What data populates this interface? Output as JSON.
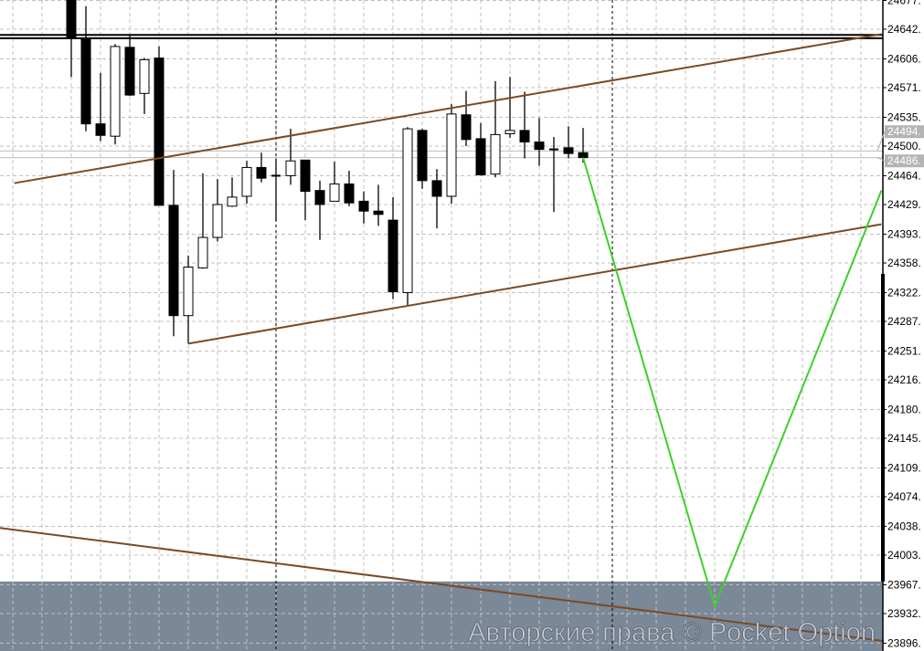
{
  "chart_data": {
    "type": "candlestick",
    "title": "",
    "xlabel": "",
    "ylabel": "",
    "ylim": [
      23880,
      24680
    ],
    "grid": true,
    "y_tick_labels": [
      "24677.",
      "24642.",
      "24606.",
      "24571.",
      "24535.",
      "24500.",
      "24464.",
      "24429.",
      "24393.",
      "24358.",
      "24322.",
      "24287.",
      "24251.",
      "24216.",
      "24180.",
      "24145.",
      "24109.",
      "24074.",
      "24038.",
      "24003.",
      "23967.",
      "23932.",
      "23896."
    ],
    "y_ticks": [
      24677,
      24642,
      24606,
      24571,
      24535,
      24500,
      24464,
      24429,
      24393,
      24358,
      24322,
      24287,
      24251,
      24216,
      24180,
      24145,
      24109,
      24074,
      24038,
      24003,
      23967,
      23932,
      23896
    ],
    "candles": [
      {
        "o": 24683,
        "h": 24700,
        "l": 24584,
        "c": 24631
      },
      {
        "o": 24630,
        "h": 24670,
        "l": 24518,
        "c": 24527
      },
      {
        "o": 24527,
        "h": 24589,
        "l": 24506,
        "c": 24513
      },
      {
        "o": 24512,
        "h": 24624,
        "l": 24502,
        "c": 24621
      },
      {
        "o": 24620,
        "h": 24636,
        "l": 24561,
        "c": 24562
      },
      {
        "o": 24564,
        "h": 24607,
        "l": 24539,
        "c": 24605
      },
      {
        "o": 24607,
        "h": 24621,
        "l": 24428,
        "c": 24428
      },
      {
        "o": 24428,
        "h": 24471,
        "l": 24269,
        "c": 24294
      },
      {
        "o": 24294,
        "h": 24367,
        "l": 24260,
        "c": 24353
      },
      {
        "o": 24352,
        "h": 24467,
        "l": 24351,
        "c": 24389
      },
      {
        "o": 24389,
        "h": 24460,
        "l": 24384,
        "c": 24429
      },
      {
        "o": 24427,
        "h": 24462,
        "l": 24426,
        "c": 24438
      },
      {
        "o": 24439,
        "h": 24482,
        "l": 24430,
        "c": 24474
      },
      {
        "o": 24474,
        "h": 24492,
        "l": 24456,
        "c": 24461
      },
      {
        "o": 24464,
        "h": 24485,
        "l": 24409,
        "c": 24464
      },
      {
        "o": 24464,
        "h": 24521,
        "l": 24453,
        "c": 24482
      },
      {
        "o": 24483,
        "h": 24483,
        "l": 24410,
        "c": 24445
      },
      {
        "o": 24446,
        "h": 24458,
        "l": 24386,
        "c": 24429
      },
      {
        "o": 24433,
        "h": 24481,
        "l": 24433,
        "c": 24454
      },
      {
        "o": 24454,
        "h": 24470,
        "l": 24427,
        "c": 24431
      },
      {
        "o": 24433,
        "h": 24445,
        "l": 24406,
        "c": 24421
      },
      {
        "o": 24421,
        "h": 24453,
        "l": 24403,
        "c": 24417
      },
      {
        "o": 24410,
        "h": 24438,
        "l": 24314,
        "c": 24323
      },
      {
        "o": 24322,
        "h": 24523,
        "l": 24306,
        "c": 24521
      },
      {
        "o": 24519,
        "h": 24521,
        "l": 24448,
        "c": 24458
      },
      {
        "o": 24458,
        "h": 24472,
        "l": 24400,
        "c": 24439
      },
      {
        "o": 24439,
        "h": 24551,
        "l": 24430,
        "c": 24539
      },
      {
        "o": 24538,
        "h": 24567,
        "l": 24500,
        "c": 24508
      },
      {
        "o": 24509,
        "h": 24528,
        "l": 24465,
        "c": 24465
      },
      {
        "o": 24466,
        "h": 24579,
        "l": 24462,
        "c": 24514
      },
      {
        "o": 24515,
        "h": 24584,
        "l": 24510,
        "c": 24519
      },
      {
        "o": 24519,
        "h": 24566,
        "l": 24485,
        "c": 24505
      },
      {
        "o": 24505,
        "h": 24534,
        "l": 24476,
        "c": 24496
      },
      {
        "o": 24496,
        "h": 24511,
        "l": 24420,
        "c": 24496
      },
      {
        "o": 24498,
        "h": 24524,
        "l": 24485,
        "c": 24491
      },
      {
        "o": 24492,
        "h": 24522,
        "l": 24480,
        "c": 24486
      }
    ],
    "horizontal_levels": [
      24635,
      24631
    ],
    "price_labels": [
      {
        "text": "24494.",
        "value": 24494
      },
      {
        "text": "24486.",
        "value": 24486
      }
    ],
    "trendlines": [
      {
        "points": [
          [
            -2.9,
            24455
          ],
          [
            56.4,
            24636
          ]
        ],
        "color": "#7b4a24"
      },
      {
        "points": [
          [
            9,
            24260
          ],
          [
            56.4,
            24405
          ]
        ],
        "color": "#7b4a24"
      },
      {
        "points": [
          [
            -3.9,
            24036
          ],
          [
            58.6,
            23894
          ]
        ],
        "color": "#7b4a24"
      }
    ],
    "forecast_path": {
      "points": [
        [
          36,
          24486
        ],
        [
          45,
          23941
        ],
        [
          56.4,
          24446
        ]
      ],
      "color": "#3ecf2a"
    },
    "vertical_markers": [
      15,
      38
    ],
    "shaded_zone": {
      "from": 23880,
      "to": 23971,
      "color": "#7a8898"
    },
    "colors": {
      "bull": "#ffffff",
      "bear": "#000000",
      "grid": "#c0c0c0"
    }
  },
  "watermark": "Авторские права © Pocket Option"
}
